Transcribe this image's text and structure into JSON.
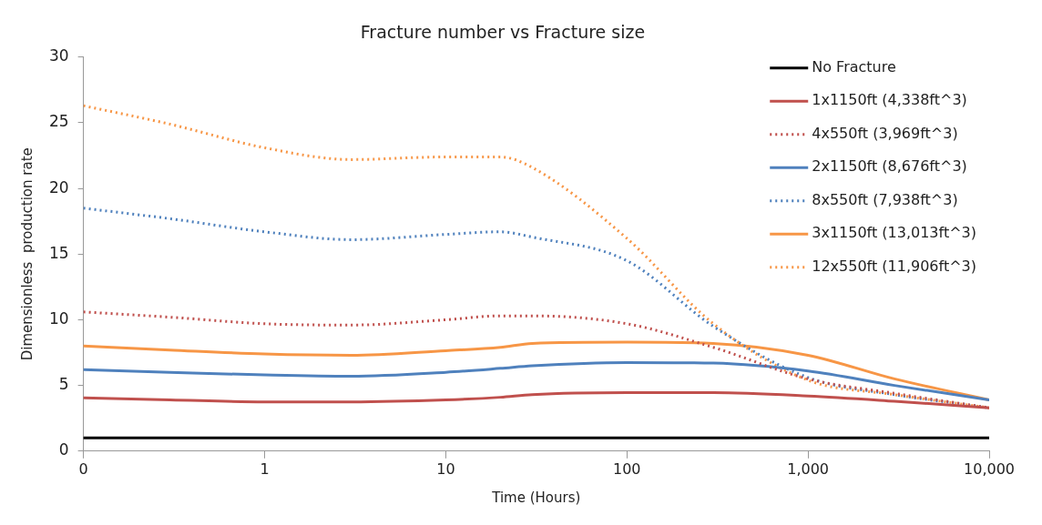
{
  "chart_data": {
    "type": "line",
    "title": "Fracture number vs Fracture size",
    "xlabel": "Time (Hours)",
    "ylabel": "Dimensionless  production rate",
    "log": "x",
    "xlim": [
      0.1,
      10000
    ],
    "xticks": [
      {
        "value": 0.1,
        "label": "0"
      },
      1,
      10,
      100,
      {
        "value": 1000,
        "label": "1,000"
      },
      {
        "value": 10000,
        "label": "10,000"
      }
    ],
    "ylim": [
      0,
      30
    ],
    "yticks": [
      0,
      5,
      10,
      15,
      20,
      25,
      30
    ],
    "grid": false,
    "legend": "top right",
    "marker": "none",
    "x": [
      0.1,
      0.3,
      1,
      3,
      10,
      20,
      30,
      100,
      300,
      1000,
      3000,
      10000
    ],
    "series": [
      {
        "name": "No Fracture",
        "color": "#000000",
        "line_style": "solid",
        "values": [
          1,
          1,
          1,
          1,
          1,
          1,
          1,
          1,
          1,
          1,
          1,
          1
        ]
      },
      {
        "name": "1x1150ft (4,338ft^3)",
        "color": "#c0504d",
        "line_style": "solid",
        "values": [
          4.05,
          3.9,
          3.75,
          3.75,
          3.9,
          4.1,
          4.3,
          4.45,
          4.45,
          4.2,
          3.8,
          3.3
        ]
      },
      {
        "name": "4x550ft (3,969ft^3)",
        "color": "#c0504d",
        "line_style": "dotted",
        "values": [
          10.6,
          10.2,
          9.7,
          9.6,
          10,
          10.3,
          10.3,
          9.7,
          7.9,
          5.5,
          4.4,
          3.3
        ]
      },
      {
        "name": "2x1150ft (8,676ft^3)",
        "color": "#4f81bd",
        "line_style": "solid",
        "values": [
          6.2,
          6,
          5.8,
          5.7,
          6,
          6.3,
          6.5,
          6.75,
          6.7,
          6.1,
          5,
          3.9
        ]
      },
      {
        "name": "8x550ft (7,938ft^3)",
        "color": "#4f81bd",
        "line_style": "dotted",
        "values": [
          18.5,
          17.7,
          16.7,
          16.1,
          16.5,
          16.7,
          16.3,
          14.5,
          9.5,
          5.6,
          4.3,
          3.3
        ]
      },
      {
        "name": "3x1150ft (13,013ft^3)",
        "color": "#f79646",
        "line_style": "solid",
        "values": [
          8,
          7.7,
          7.4,
          7.3,
          7.65,
          7.9,
          8.2,
          8.3,
          8.2,
          7.3,
          5.5,
          3.9
        ]
      },
      {
        "name": "12x550ft (11,906ft^3)",
        "color": "#f79646",
        "line_style": "dotted",
        "values": [
          26.3,
          24.9,
          23.1,
          22.2,
          22.4,
          22.4,
          21.6,
          16.2,
          9.7,
          5.4,
          4.3,
          3.3
        ]
      }
    ]
  }
}
